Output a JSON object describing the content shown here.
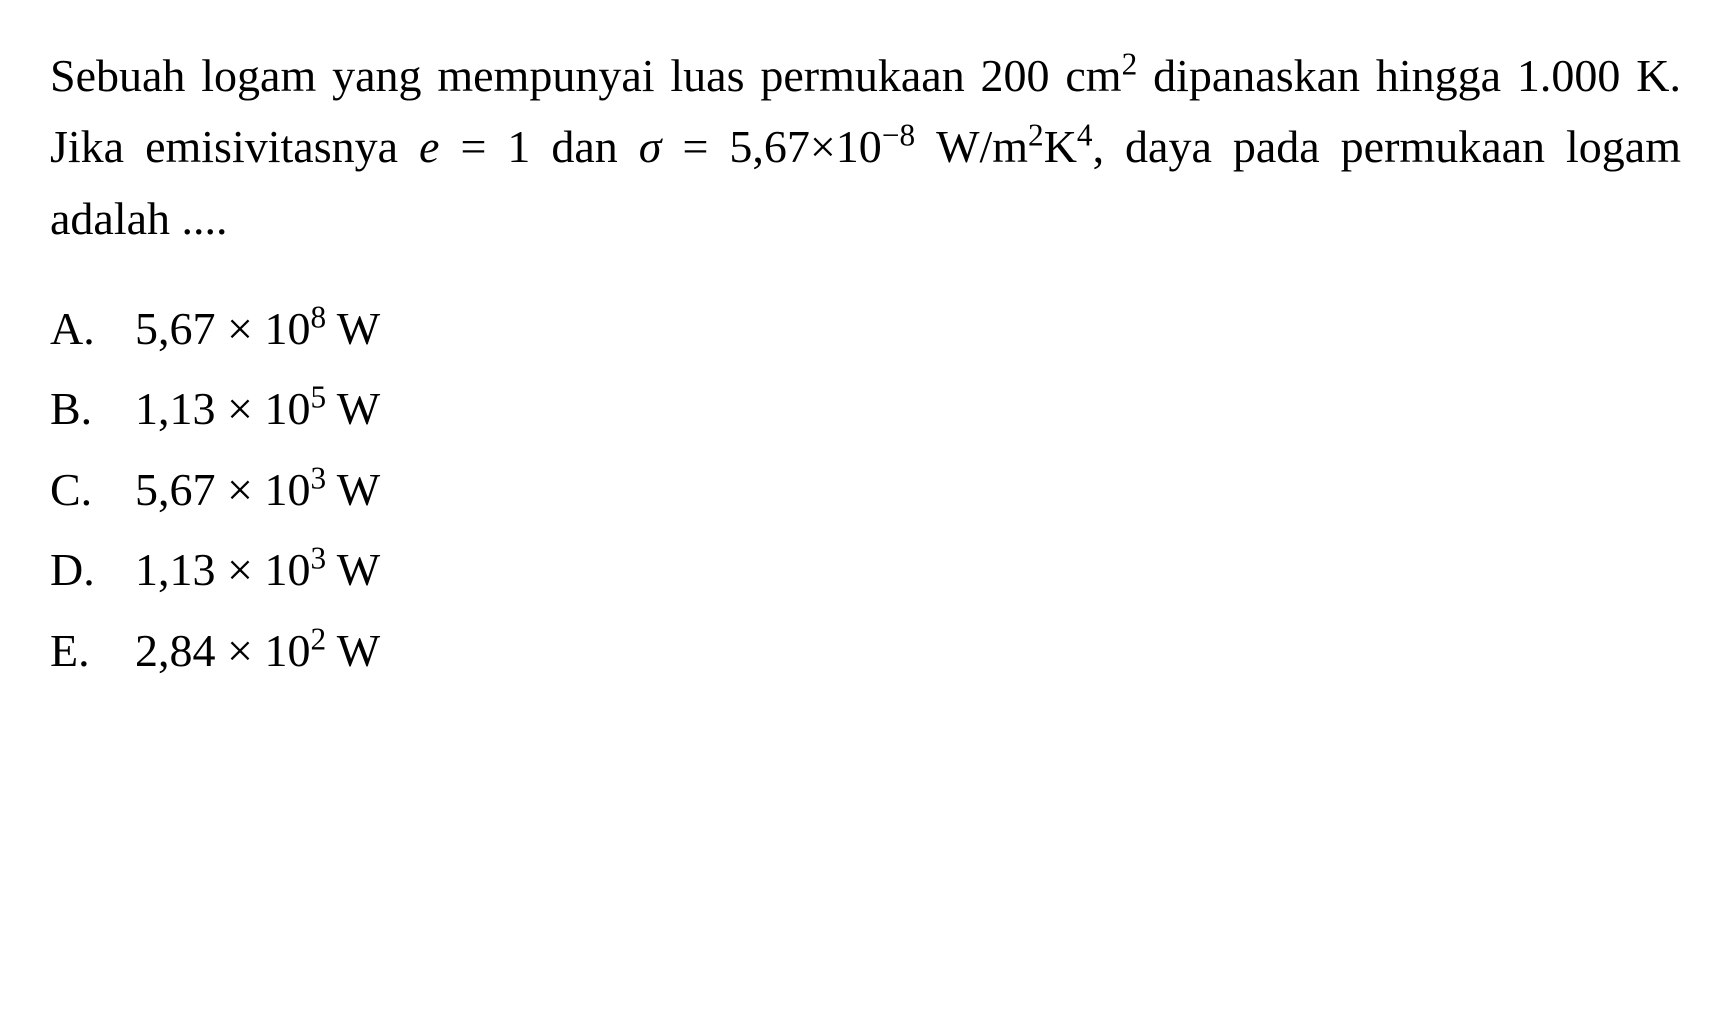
{
  "question": {
    "line1_part1": "Sebuah logam yang mempunyai luas permukaan 200 cm",
    "line1_sup1": "2",
    "line1_part2": " dipanaskan hingga 1.000 K. Jika emisivitasnya ",
    "e_var": "e",
    "line1_part3": " = 1 dan ",
    "sigma_var": "σ",
    "line1_part4": " = 5,67×10",
    "line1_sup2": "−8",
    "line1_part5": " W/m",
    "line1_sup3": "2",
    "line1_part6": "K",
    "line1_sup4": "4",
    "line1_part7": ", daya pada permukaan logam adalah ...."
  },
  "options": {
    "a": {
      "letter": "A.",
      "coeff": "5,67 × 10",
      "exp": "8",
      "unit": " W"
    },
    "b": {
      "letter": "B.",
      "coeff": "1,13 × 10",
      "exp": "5",
      "unit": " W"
    },
    "c": {
      "letter": "C.",
      "coeff": "5,67 × 10",
      "exp": "3",
      "unit": " W"
    },
    "d": {
      "letter": "D.",
      "coeff": "1,13 × 10",
      "exp": "3",
      "unit": " W"
    },
    "e": {
      "letter": "E.",
      "coeff": "2,84 × 10",
      "exp": "2",
      "unit": " W"
    }
  },
  "style": {
    "font_family": "Times New Roman",
    "background_color": "#ffffff",
    "text_color": "#000000",
    "question_fontsize": 46,
    "option_fontsize": 46
  }
}
